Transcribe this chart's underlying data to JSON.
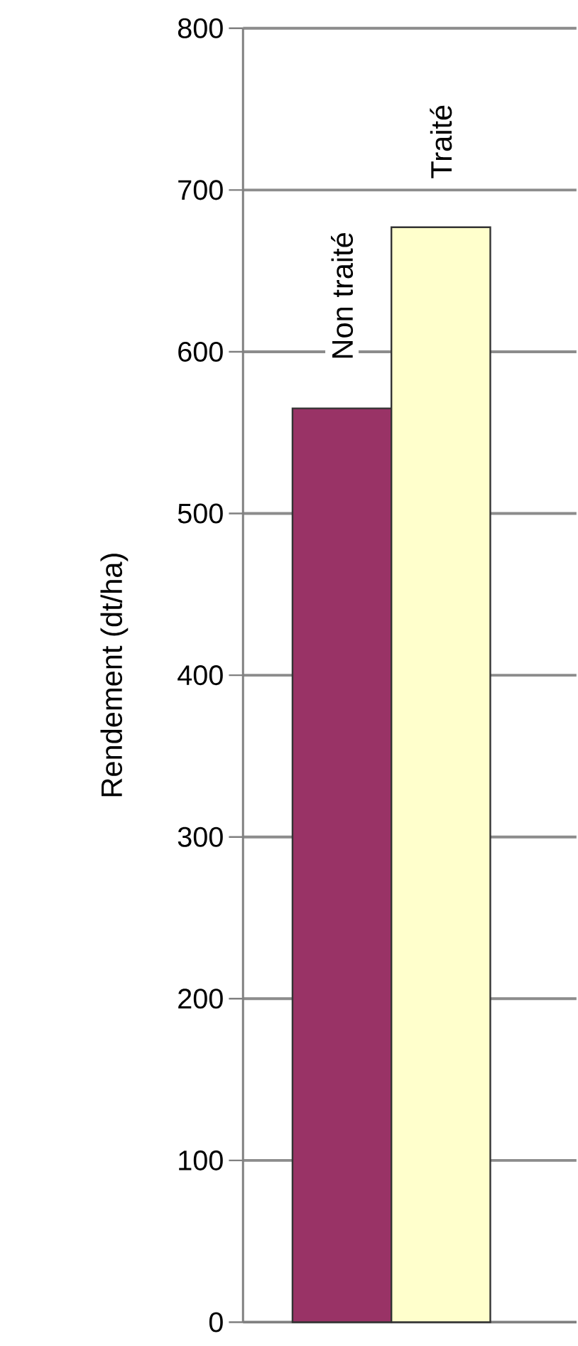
{
  "chart_data": {
    "type": "bar",
    "ylabel": "Rendement (dt/ha)",
    "categories": [
      null
    ],
    "series": [
      {
        "name": "Non traité",
        "color": "#993366",
        "values": [
          565
        ]
      },
      {
        "name": "Traité",
        "color": "#ffffcc",
        "values": [
          677
        ]
      }
    ],
    "ylim": [
      0,
      800
    ],
    "yticks": [
      0,
      100,
      200,
      300,
      400,
      500,
      600,
      700,
      800
    ],
    "grid": "y"
  }
}
